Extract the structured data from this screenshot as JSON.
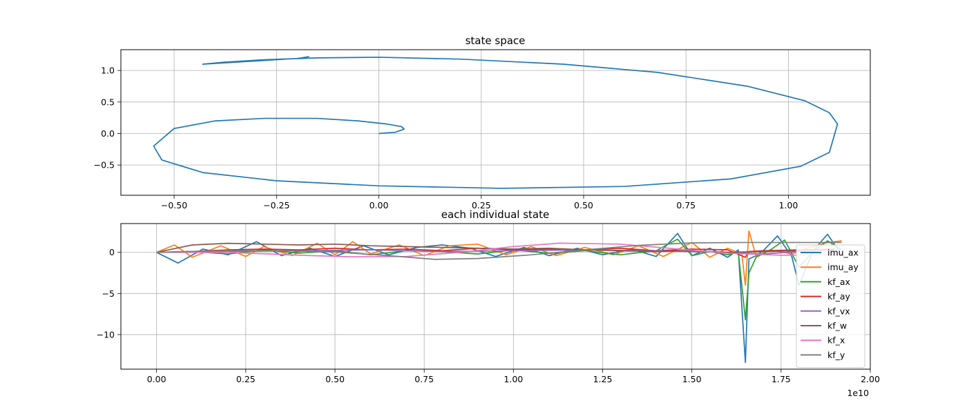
{
  "chart_data": [
    {
      "type": "line",
      "title": "state space",
      "xlabel": "",
      "ylabel": "",
      "xlim": [
        -0.63,
        1.2
      ],
      "ylim": [
        -0.98,
        1.33
      ],
      "xticks": [
        -0.5,
        -0.25,
        0.0,
        0.25,
        0.5,
        0.75,
        1.0
      ],
      "xtick_labels": [
        "−0.50",
        "−0.25",
        "0.00",
        "0.25",
        "0.50",
        "0.75",
        "1.00"
      ],
      "yticks": [
        -0.5,
        0.0,
        0.5,
        1.0
      ],
      "ytick_labels": [
        "−0.5",
        "0.0",
        "0.5",
        "1.0"
      ],
      "grid": true,
      "series": [
        {
          "color": "#1f77b4",
          "x": [
            0.0,
            0.04,
            0.062,
            0.055,
            0.02,
            -0.05,
            -0.15,
            -0.28,
            -0.4,
            -0.5,
            -0.55,
            -0.53,
            -0.43,
            -0.25,
            0.0,
            0.3,
            0.6,
            0.86,
            1.03,
            1.1,
            1.12,
            1.1,
            1.04,
            0.9,
            0.68,
            0.45,
            0.2,
            0.0,
            -0.15,
            -0.28,
            -0.38,
            -0.43,
            -0.33,
            -0.2,
            -0.17
          ],
          "y": [
            0.0,
            0.02,
            0.07,
            0.11,
            0.15,
            0.2,
            0.24,
            0.24,
            0.2,
            0.08,
            -0.2,
            -0.42,
            -0.62,
            -0.75,
            -0.83,
            -0.87,
            -0.84,
            -0.72,
            -0.52,
            -0.3,
            0.15,
            0.33,
            0.52,
            0.75,
            0.97,
            1.1,
            1.18,
            1.21,
            1.2,
            1.17,
            1.13,
            1.1,
            1.14,
            1.19,
            1.22
          ]
        }
      ]
    },
    {
      "type": "line",
      "title": "each individual state",
      "xlabel": "",
      "ylabel": "",
      "x_offset_label": "1e10",
      "xlim": [
        -0.1,
        2.0
      ],
      "ylim": [
        -14.2,
        3.5
      ],
      "xticks": [
        0.0,
        0.25,
        0.5,
        0.75,
        1.0,
        1.25,
        1.5,
        1.75,
        2.0
      ],
      "xtick_labels": [
        "0.00",
        "0.25",
        "0.50",
        "0.75",
        "1.00",
        "1.25",
        "1.50",
        "1.75",
        "2.00"
      ],
      "yticks": [
        -10,
        -5,
        0
      ],
      "ytick_labels": [
        "−10",
        "−5",
        "0"
      ],
      "grid": true,
      "legend_position": "right",
      "series": [
        {
          "name": "imu_ax",
          "color": "#1f77b4",
          "x": [
            0.0,
            0.06,
            0.13,
            0.2,
            0.28,
            0.35,
            0.43,
            0.5,
            0.58,
            0.65,
            0.73,
            0.8,
            0.88,
            0.95,
            1.03,
            1.1,
            1.18,
            1.25,
            1.33,
            1.4,
            1.46,
            1.5,
            1.55,
            1.6,
            1.63,
            1.65,
            1.66,
            1.68,
            1.7,
            1.74,
            1.78,
            1.8,
            1.84,
            1.88,
            1.92
          ],
          "y": [
            0.0,
            -1.3,
            0.4,
            -0.3,
            1.3,
            -0.4,
            0.5,
            -0.5,
            0.8,
            -0.3,
            0.6,
            0.9,
            0.5,
            -0.5,
            0.6,
            -0.4,
            0.5,
            -0.3,
            0.4,
            -0.5,
            2.3,
            -0.4,
            0.5,
            -0.6,
            0.3,
            -13.4,
            -0.8,
            -0.4,
            0.2,
            2.0,
            -0.5,
            -4.0,
            0.2,
            2.2,
            -0.3
          ]
        },
        {
          "name": "imu_ay",
          "color": "#ff7f0e",
          "x": [
            0.0,
            0.05,
            0.1,
            0.18,
            0.25,
            0.3,
            0.38,
            0.45,
            0.5,
            0.55,
            0.6,
            0.68,
            0.75,
            0.82,
            0.9,
            0.98,
            1.05,
            1.12,
            1.2,
            1.28,
            1.35,
            1.42,
            1.5,
            1.55,
            1.6,
            1.64,
            1.65,
            1.66,
            1.68,
            1.72,
            1.78,
            1.83,
            1.88,
            1.92
          ],
          "y": [
            0.0,
            0.9,
            -0.6,
            0.8,
            -0.5,
            0.7,
            -0.4,
            1.1,
            -0.3,
            1.3,
            -0.2,
            0.9,
            -0.4,
            0.8,
            1.0,
            -0.3,
            0.7,
            -0.4,
            0.6,
            -0.3,
            0.8,
            -0.5,
            1.2,
            -0.6,
            0.5,
            -0.2,
            -4.0,
            2.6,
            -0.5,
            0.3,
            -0.2,
            0.6,
            1.2,
            1.4
          ]
        },
        {
          "name": "kf_ax",
          "color": "#2ca02c",
          "x": [
            0.0,
            0.1,
            0.2,
            0.3,
            0.4,
            0.5,
            0.6,
            0.7,
            0.8,
            0.9,
            1.0,
            1.1,
            1.2,
            1.3,
            1.4,
            1.46,
            1.5,
            1.55,
            1.6,
            1.63,
            1.65,
            1.66,
            1.68,
            1.72,
            1.76,
            1.8,
            1.84,
            1.88,
            1.92
          ],
          "y": [
            0.0,
            0.1,
            -0.2,
            0.3,
            -0.1,
            0.2,
            -0.3,
            0.2,
            0.1,
            -0.2,
            0.3,
            -0.1,
            0.2,
            -0.3,
            0.2,
            1.6,
            -0.4,
            0.1,
            -0.3,
            0.1,
            -8.2,
            -2.5,
            -0.6,
            0.3,
            1.5,
            -1.8,
            0.1,
            1.4,
            0.3
          ]
        },
        {
          "name": "kf_ay",
          "color": "#d62728",
          "x": [
            0.0,
            0.1,
            0.2,
            0.3,
            0.4,
            0.5,
            0.6,
            0.7,
            0.8,
            0.9,
            1.0,
            1.1,
            1.2,
            1.3,
            1.4,
            1.5,
            1.6,
            1.65,
            1.66,
            1.7,
            1.8,
            1.9
          ],
          "y": [
            0.0,
            0.1,
            0.3,
            0.4,
            0.3,
            0.5,
            0.3,
            0.4,
            0.2,
            0.5,
            0.3,
            0.4,
            0.3,
            0.5,
            0.2,
            0.4,
            0.3,
            -0.6,
            0.1,
            0.2,
            0.3,
            0.4
          ]
        },
        {
          "name": "kf_vx",
          "color": "#9467bd",
          "x": [
            0.0,
            0.2,
            0.4,
            0.6,
            0.8,
            1.0,
            1.2,
            1.4,
            1.6,
            1.7,
            1.8,
            1.9
          ],
          "y": [
            0.0,
            0.1,
            0.2,
            0.3,
            0.1,
            0.2,
            0.3,
            0.2,
            0.0,
            -0.2,
            0.1,
            0.3
          ]
        },
        {
          "name": "kf_w",
          "color": "#8c564b",
          "x": [
            0.0,
            0.1,
            0.2,
            0.3,
            0.4,
            0.5,
            0.6,
            0.7,
            0.8,
            0.9,
            1.0,
            1.1,
            1.2,
            1.3,
            1.4,
            1.5,
            1.6,
            1.7,
            1.8,
            1.9
          ],
          "y": [
            0.0,
            0.9,
            1.1,
            1.0,
            0.9,
            1.0,
            0.8,
            0.7,
            0.6,
            0.5,
            0.4,
            0.5,
            0.3,
            0.2,
            0.1,
            0.2,
            0.0,
            0.1,
            0.2,
            0.3
          ]
        },
        {
          "name": "kf_x",
          "color": "#e377c2",
          "x": [
            0.0,
            0.2,
            0.4,
            0.55,
            0.7,
            0.85,
            1.0,
            1.13,
            1.3,
            1.45,
            1.6,
            1.75,
            1.85,
            1.92
          ],
          "y": [
            0.0,
            0.0,
            -0.35,
            -0.55,
            -0.5,
            0.0,
            0.7,
            1.12,
            1.0,
            0.45,
            -0.1,
            -0.35,
            -0.3,
            -0.2
          ]
        },
        {
          "name": "kf_y",
          "color": "#7f7f7f",
          "x": [
            0.0,
            0.2,
            0.35,
            0.5,
            0.65,
            0.78,
            0.9,
            1.05,
            1.2,
            1.35,
            1.5,
            1.65,
            1.8,
            1.92
          ],
          "y": [
            0.0,
            0.22,
            0.2,
            0.05,
            -0.4,
            -0.85,
            -0.75,
            -0.3,
            0.3,
            0.85,
            1.15,
            1.2,
            1.2,
            1.2
          ]
        }
      ]
    }
  ]
}
